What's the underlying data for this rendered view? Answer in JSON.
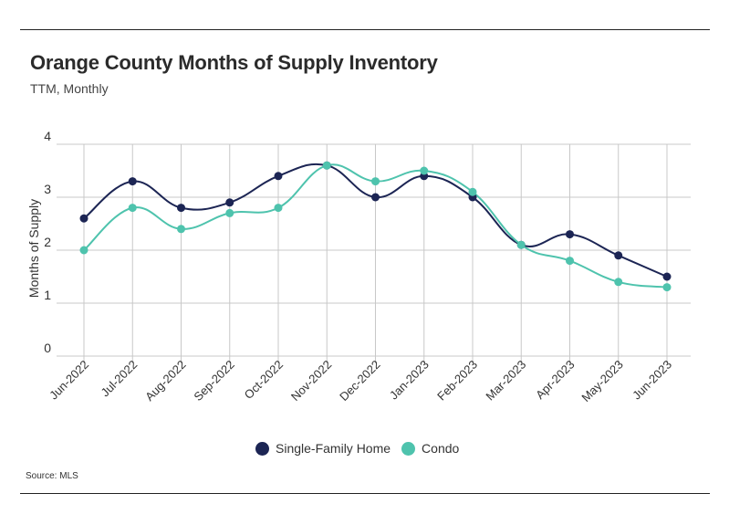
{
  "header": {
    "title": "Orange County Months of Supply Inventory",
    "subtitle": "TTM, Monthly"
  },
  "footer": {
    "source": "Source:  MLS"
  },
  "colors": {
    "sfh": "#1c2554",
    "condo": "#4ec3ad",
    "grid": "#c8c8c8"
  },
  "chart_data": {
    "type": "line",
    "title": "Orange County Months of Supply Inventory",
    "subtitle": "TTM, Monthly",
    "xlabel": "",
    "ylabel": "Months of Supply",
    "ylim": [
      0,
      4
    ],
    "yticks": [
      0,
      1,
      2,
      3,
      4
    ],
    "grid": true,
    "legend_position": "bottom",
    "categories": [
      "Jun-2022",
      "Jul-2022",
      "Aug-2022",
      "Sep-2022",
      "Oct-2022",
      "Nov-2022",
      "Dec-2022",
      "Jan-2023",
      "Feb-2023",
      "Mar-2023",
      "Apr-2023",
      "May-2023",
      "Jun-2023"
    ],
    "series": [
      {
        "name": "Single-Family Home",
        "color": "#1c2554",
        "values": [
          2.6,
          3.3,
          2.8,
          2.9,
          3.4,
          3.6,
          3.0,
          3.4,
          3.0,
          2.1,
          2.3,
          1.9,
          1.5
        ]
      },
      {
        "name": "Condo",
        "color": "#4ec3ad",
        "values": [
          2.0,
          2.8,
          2.4,
          2.7,
          2.8,
          3.6,
          3.3,
          3.5,
          3.1,
          2.1,
          1.8,
          1.4,
          1.3
        ]
      }
    ]
  }
}
